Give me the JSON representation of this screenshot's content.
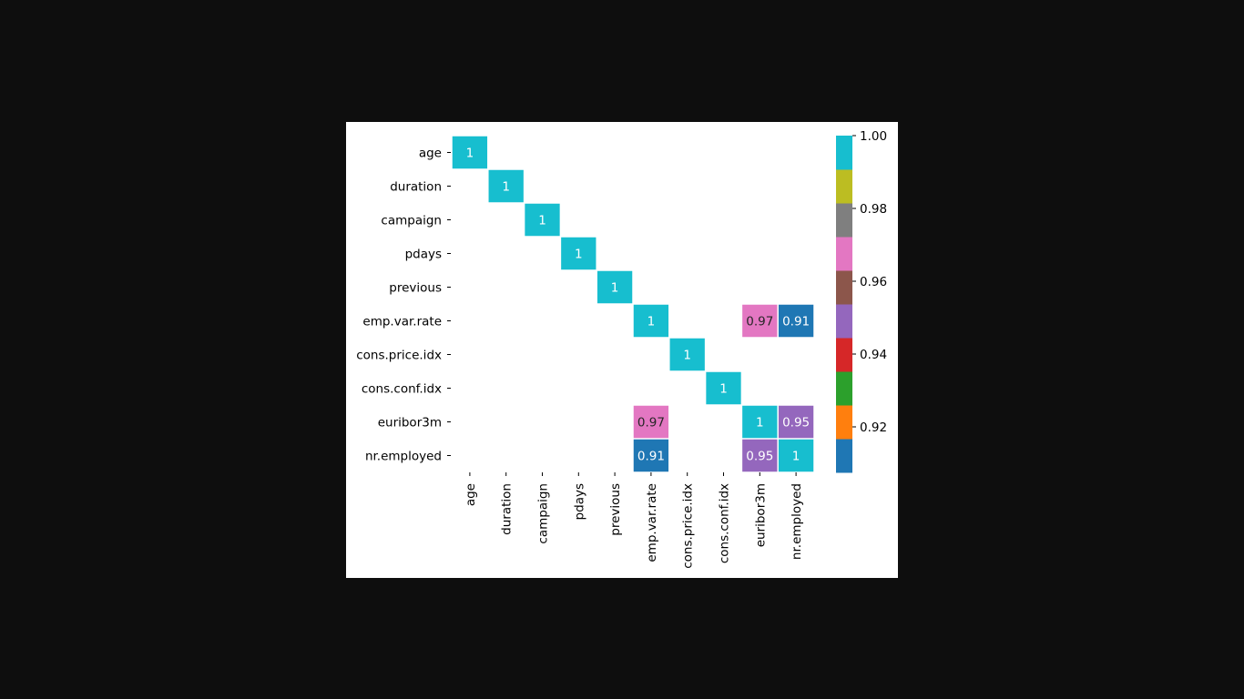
{
  "chart_data": {
    "type": "heatmap",
    "title": "",
    "xlabel": "",
    "ylabel": "",
    "rows": [
      "age",
      "duration",
      "campaign",
      "pdays",
      "previous",
      "emp.var.rate",
      "cons.price.idx",
      "cons.conf.idx",
      "euribor3m",
      "nr.employed"
    ],
    "columns": [
      "age",
      "duration",
      "campaign",
      "pdays",
      "previous",
      "emp.var.rate",
      "cons.price.idx",
      "cons.conf.idx",
      "euribor3m",
      "nr.employed"
    ],
    "cells": [
      {
        "row": "age",
        "col": "age",
        "value": 1,
        "label": "1"
      },
      {
        "row": "duration",
        "col": "duration",
        "value": 1,
        "label": "1"
      },
      {
        "row": "campaign",
        "col": "campaign",
        "value": 1,
        "label": "1"
      },
      {
        "row": "pdays",
        "col": "pdays",
        "value": 1,
        "label": "1"
      },
      {
        "row": "previous",
        "col": "previous",
        "value": 1,
        "label": "1"
      },
      {
        "row": "emp.var.rate",
        "col": "emp.var.rate",
        "value": 1,
        "label": "1"
      },
      {
        "row": "emp.var.rate",
        "col": "euribor3m",
        "value": 0.97,
        "label": "0.97"
      },
      {
        "row": "emp.var.rate",
        "col": "nr.employed",
        "value": 0.91,
        "label": "0.91"
      },
      {
        "row": "cons.price.idx",
        "col": "cons.price.idx",
        "value": 1,
        "label": "1"
      },
      {
        "row": "cons.conf.idx",
        "col": "cons.conf.idx",
        "value": 1,
        "label": "1"
      },
      {
        "row": "euribor3m",
        "col": "emp.var.rate",
        "value": 0.97,
        "label": "0.97"
      },
      {
        "row": "euribor3m",
        "col": "euribor3m",
        "value": 1,
        "label": "1"
      },
      {
        "row": "euribor3m",
        "col": "nr.employed",
        "value": 0.95,
        "label": "0.95"
      },
      {
        "row": "nr.employed",
        "col": "emp.var.rate",
        "value": 0.91,
        "label": "0.91"
      },
      {
        "row": "nr.employed",
        "col": "euribor3m",
        "value": 0.95,
        "label": "0.95"
      },
      {
        "row": "nr.employed",
        "col": "nr.employed",
        "value": 1,
        "label": "1"
      }
    ],
    "colorbar": {
      "range": [
        0.9075,
        1.0
      ],
      "ticks": [
        {
          "value": 1.0,
          "label": "1.00"
        },
        {
          "value": 0.98,
          "label": "0.98"
        },
        {
          "value": 0.96,
          "label": "0.96"
        },
        {
          "value": 0.94,
          "label": "0.94"
        },
        {
          "value": 0.92,
          "label": "0.92"
        }
      ],
      "colors_low_to_high": [
        "#1f77b4",
        "#ff7f0e",
        "#2ca02c",
        "#d62728",
        "#9467bd",
        "#8c564b",
        "#e377c2",
        "#7f7f7f",
        "#bcbd22",
        "#17becf"
      ]
    },
    "legend": "colorbar-right",
    "grid": false
  }
}
